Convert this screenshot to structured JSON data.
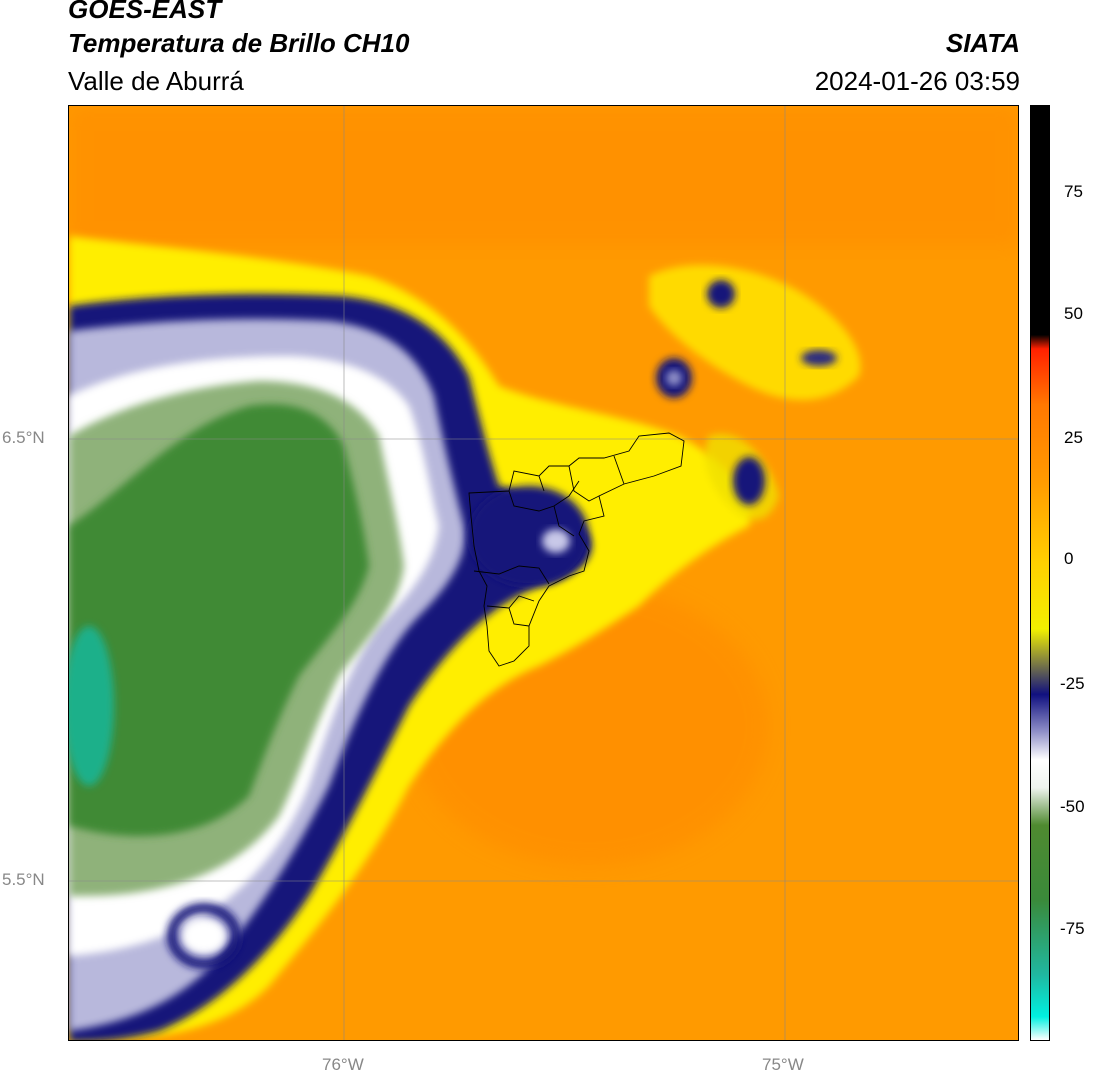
{
  "header": {
    "satellite": "GOES-EAST",
    "product": "Temperatura de Brillo CH10",
    "region": "Valle de Aburrá",
    "org": "SIATA",
    "datetime": "2024-01-26 03:59"
  },
  "map": {
    "lat_labels": [
      "6.5°N",
      "5.5°N"
    ],
    "lon_labels": [
      "76°W",
      "75°W"
    ],
    "colors": {
      "warm": "#ff9a00",
      "yellow": "#ffee00",
      "navy": "#12127a",
      "lavender": "#b8b8dc",
      "white": "#ffffff",
      "green_light": "#8fb27a",
      "green": "#3f8a35",
      "teal": "#1fb08a"
    }
  },
  "colorbar": {
    "ticks": [
      "75",
      "50",
      "25",
      "0",
      "-25",
      "-50",
      "-75"
    ],
    "stops": [
      "#ffffff",
      "#00f0e0",
      "#20b8a0",
      "#3a8a3a",
      "#4f8a30",
      "#eef3ee",
      "#ffffff",
      "#9090c8",
      "#101080",
      "#f2f000",
      "#ffd000",
      "#ff9a00",
      "#ff7800",
      "#ff2000",
      "#000000"
    ]
  }
}
